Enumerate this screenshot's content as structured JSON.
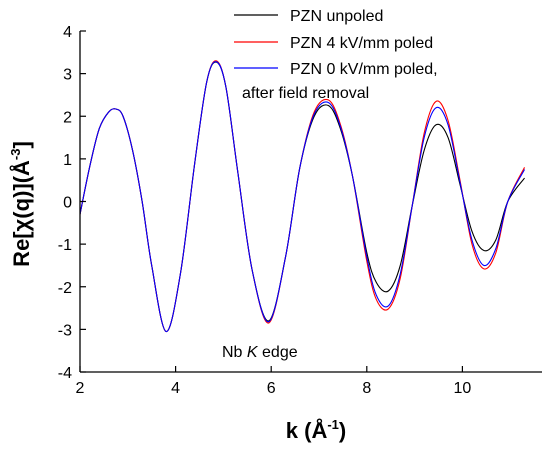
{
  "chart_data": {
    "type": "line",
    "title": "",
    "xlabel": {
      "main": "k (Å",
      "sup": "-1",
      "tail": ")"
    },
    "ylabel": {
      "main": "Re[χ(q)](Å",
      "sup": "-3",
      "tail": "]"
    },
    "xlim": [
      2,
      11.3
    ],
    "ylim": [
      -4,
      4
    ],
    "x_ticks": [
      "2",
      "4",
      "6",
      "8",
      "10"
    ],
    "y_ticks": [
      "-4",
      "-3",
      "-2",
      "-1",
      "0",
      "1",
      "2",
      "3",
      "4"
    ],
    "annotation": {
      "prefix": "Nb ",
      "italic": "K",
      "suffix": " edge"
    },
    "legend_position": "top-right",
    "series": [
      {
        "name": "PZN unpoled",
        "color": "#000000",
        "x": [
          2.0,
          2.2,
          2.4,
          2.6,
          2.75,
          2.9,
          3.1,
          3.3,
          3.5,
          3.8,
          4.1,
          4.4,
          4.65,
          4.85,
          5.05,
          5.3,
          5.6,
          5.95,
          6.3,
          6.6,
          6.9,
          7.2,
          7.45,
          7.7,
          8.0,
          8.2,
          8.45,
          8.7,
          8.95,
          9.2,
          9.45,
          9.7,
          9.95,
          10.2,
          10.45,
          10.7,
          10.95,
          11.3
        ],
        "y": [
          -0.3,
          0.8,
          1.7,
          2.1,
          2.17,
          2.0,
          1.2,
          0.0,
          -1.5,
          -3.05,
          -1.7,
          0.9,
          2.8,
          3.27,
          2.7,
          0.7,
          -1.6,
          -2.8,
          -1.3,
          0.8,
          2.0,
          2.25,
          1.7,
          0.6,
          -1.2,
          -1.9,
          -2.1,
          -1.5,
          -0.1,
          1.2,
          1.8,
          1.5,
          0.4,
          -0.7,
          -1.15,
          -0.9,
          0.0,
          0.55
        ]
      },
      {
        "name": "PZN 4 kV/mm poled",
        "color": "#ff0000",
        "x": [
          2.0,
          2.2,
          2.4,
          2.6,
          2.75,
          2.9,
          3.1,
          3.3,
          3.5,
          3.8,
          4.1,
          4.4,
          4.65,
          4.85,
          5.05,
          5.3,
          5.6,
          5.95,
          6.3,
          6.6,
          6.9,
          7.2,
          7.45,
          7.7,
          8.0,
          8.2,
          8.45,
          8.7,
          8.95,
          9.2,
          9.45,
          9.7,
          9.95,
          10.2,
          10.45,
          10.7,
          10.95,
          11.3
        ],
        "y": [
          -0.3,
          0.8,
          1.7,
          2.1,
          2.17,
          2.0,
          1.2,
          0.0,
          -1.5,
          -3.05,
          -1.7,
          0.9,
          2.8,
          3.3,
          2.7,
          0.7,
          -1.6,
          -2.85,
          -1.3,
          0.8,
          2.1,
          2.38,
          1.8,
          0.6,
          -1.4,
          -2.3,
          -2.52,
          -1.8,
          -0.1,
          1.6,
          2.35,
          1.9,
          0.5,
          -1.0,
          -1.58,
          -1.2,
          0.0,
          0.8
        ]
      },
      {
        "name": "PZN 0 kV/mm poled, after field removal",
        "color": "#0000ff",
        "x": [
          2.0,
          2.2,
          2.4,
          2.6,
          2.75,
          2.9,
          3.1,
          3.3,
          3.5,
          3.8,
          4.1,
          4.4,
          4.65,
          4.85,
          5.05,
          5.3,
          5.6,
          5.95,
          6.3,
          6.6,
          6.9,
          7.2,
          7.45,
          7.7,
          8.0,
          8.2,
          8.45,
          8.7,
          8.95,
          9.2,
          9.45,
          9.7,
          9.95,
          10.2,
          10.45,
          10.7,
          10.95,
          11.3
        ],
        "y": [
          -0.3,
          0.8,
          1.7,
          2.1,
          2.17,
          2.0,
          1.2,
          0.0,
          -1.5,
          -3.05,
          -1.7,
          0.9,
          2.8,
          3.28,
          2.7,
          0.7,
          -1.6,
          -2.82,
          -1.3,
          0.8,
          2.05,
          2.32,
          1.75,
          0.6,
          -1.3,
          -2.2,
          -2.45,
          -1.7,
          -0.1,
          1.5,
          2.2,
          1.8,
          0.45,
          -0.9,
          -1.5,
          -1.1,
          0.0,
          0.75
        ]
      }
    ]
  },
  "legend": {
    "entries": [
      {
        "line1": "PZN unpoled",
        "line2": "",
        "color": "#000000"
      },
      {
        "line1": "PZN 4 kV/mm poled",
        "line2": "",
        "color": "#ff0000"
      },
      {
        "line1": "PZN 0 kV/mm poled,",
        "line2": "after field removal",
        "color": "#0000ff"
      }
    ]
  }
}
